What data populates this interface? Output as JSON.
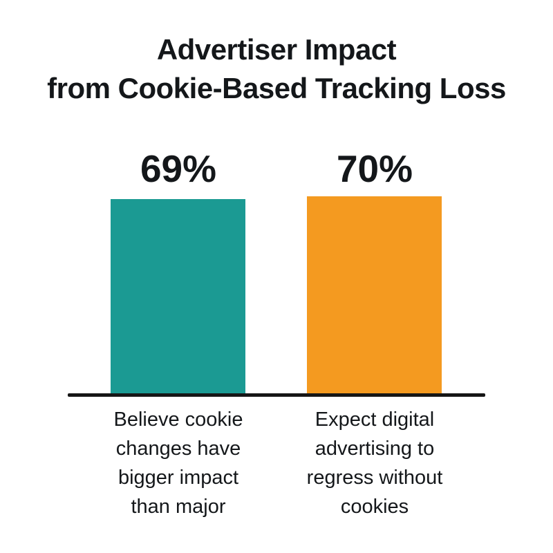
{
  "title": {
    "line1": "Advertiser Impact",
    "line2": "from Cookie-Based Tracking Loss",
    "full": "Advertiser Impact from Cookie-Based Tracking Loss"
  },
  "chart_data": {
    "type": "bar",
    "title": "Advertiser Impact from Cookie-Based Tracking Loss",
    "categories": [
      "Believe cookie changes have bigger impact than major",
      "Expect digital advertising to regress without cookies"
    ],
    "values": [
      69,
      70
    ],
    "ylim": [
      0,
      100
    ],
    "grid": false,
    "legend": false,
    "bars": [
      {
        "value": 69,
        "value_label": "69%",
        "color": "#1b9a93",
        "category": "Believe cookie changes have bigger impact than major",
        "category_lines": [
          "Believe cookie",
          "changes have",
          "bigger impact",
          "than major"
        ]
      },
      {
        "value": 70,
        "value_label": "70%",
        "color": "#f49a20",
        "category": "Expect digital advertising to regress without cookies",
        "category_lines": [
          "Expect digital",
          "advertising to",
          "regress without",
          "cookies"
        ]
      }
    ]
  },
  "colors": {
    "teal_bar": "#1b9a93",
    "orange_bar": "#f49a20",
    "text": "#14171a",
    "axis_line": "#161616",
    "background": "#ffffff"
  }
}
